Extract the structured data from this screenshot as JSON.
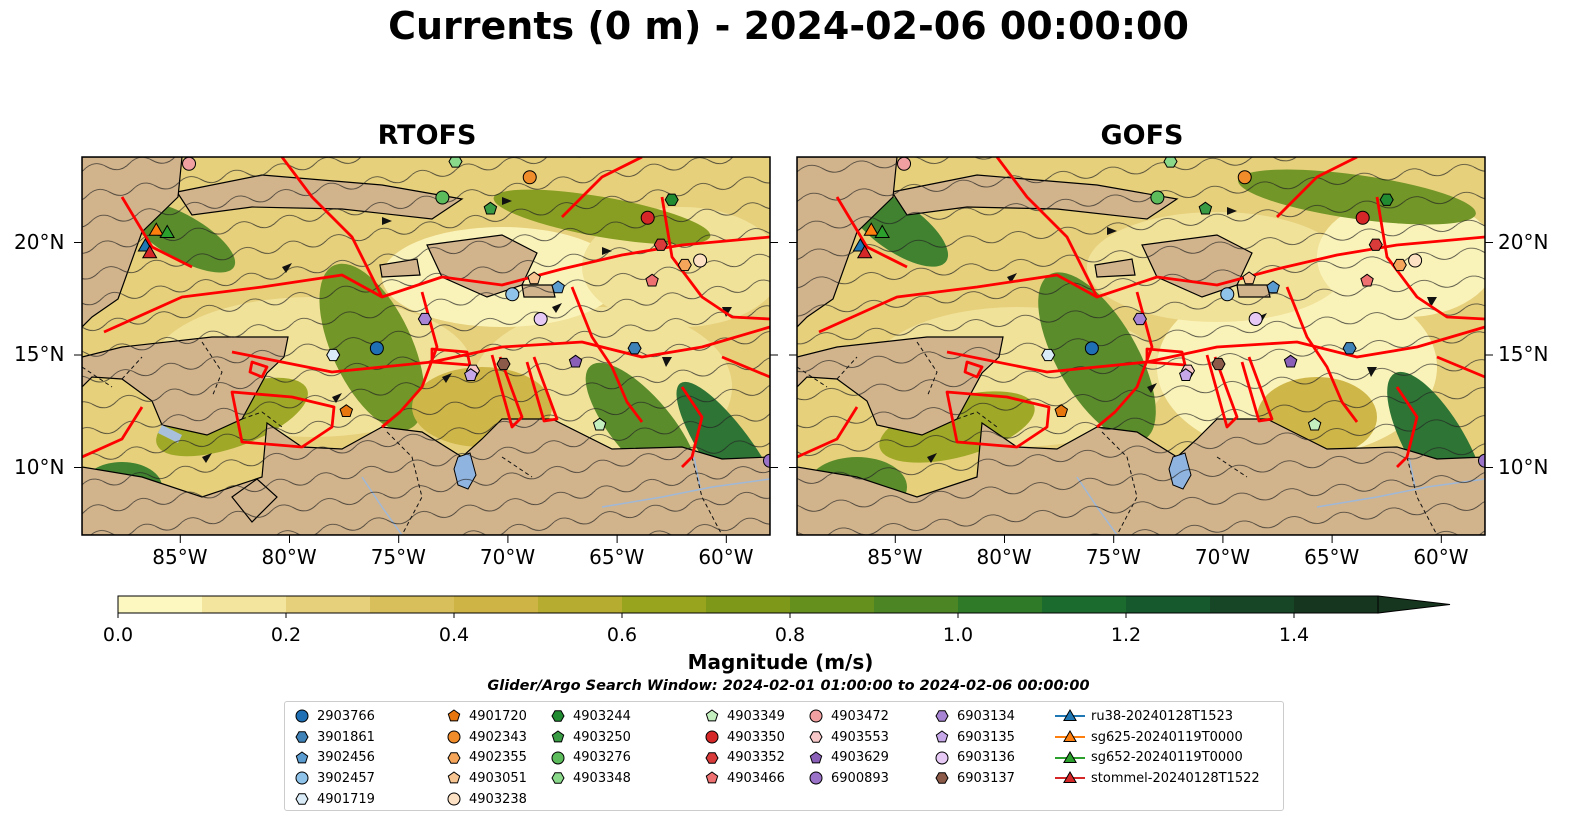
{
  "title": "Currents (0 m) - 2024-02-06 00:00:00",
  "panels": [
    {
      "title": "RTOFS"
    },
    {
      "title": "GOFS"
    }
  ],
  "axes": {
    "lon_labels": [
      "85°W",
      "80°W",
      "75°W",
      "70°W",
      "65°W",
      "60°W"
    ],
    "lat_labels": [
      "20°N",
      "15°N",
      "10°N"
    ],
    "lon_range": [
      -89.5,
      -58.0
    ],
    "lat_range": [
      7.0,
      23.8
    ]
  },
  "colorbar": {
    "label": "Magnitude (m/s)",
    "ticks": [
      "0.0",
      "0.2",
      "0.4",
      "0.6",
      "0.8",
      "1.0",
      "1.2",
      "1.4"
    ],
    "range": [
      0.0,
      1.5
    ],
    "step": 0.1,
    "extend": "max",
    "colors": [
      "#fdf7c0",
      "#f3e49e",
      "#e6d07c",
      "#d9bf5c",
      "#cdb444",
      "#b6ad30",
      "#98a41e",
      "#7e991a",
      "#66901e",
      "#4c8524",
      "#2f7a28",
      "#1b6b2e",
      "#15592c",
      "#164626",
      "#17361f"
    ]
  },
  "search_window": "Glider/Argo Search Window: 2024-02-01 01:00:00 to 2024-02-06 00:00:00",
  "legend": {
    "columns": [
      [
        {
          "label": "2903766",
          "marker": "circle",
          "color": "#1f6fb4"
        },
        {
          "label": "3901861",
          "marker": "hexagon",
          "color": "#3f82b8"
        },
        {
          "label": "3902456",
          "marker": "pentagon",
          "color": "#5a9bd0"
        },
        {
          "label": "3902457",
          "marker": "circle",
          "color": "#8fc3ea"
        },
        {
          "label": "4901719",
          "marker": "hexagon",
          "color": "#d9ecf8"
        }
      ],
      [
        {
          "label": "4901720",
          "marker": "pentagon",
          "color": "#e8760e"
        },
        {
          "label": "4902343",
          "marker": "circle",
          "color": "#f08c2a"
        },
        {
          "label": "4902355",
          "marker": "hexagon",
          "color": "#f5a65a"
        },
        {
          "label": "4903051",
          "marker": "pentagon",
          "color": "#f7c591"
        },
        {
          "label": "4903238",
          "marker": "circle",
          "color": "#fde1c4"
        }
      ],
      [
        {
          "label": "4903244",
          "marker": "hexagon",
          "color": "#218b32"
        },
        {
          "label": "4903250",
          "marker": "pentagon",
          "color": "#3a9b45"
        },
        {
          "label": "4903276",
          "marker": "circle",
          "color": "#5cbc5c"
        },
        {
          "label": "4903348",
          "marker": "hexagon",
          "color": "#8ad98a"
        }
      ],
      [
        {
          "label": "4903349",
          "marker": "pentagon",
          "color": "#c4f0c0"
        },
        {
          "label": "4903350",
          "marker": "circle",
          "color": "#d62728"
        },
        {
          "label": "4903352",
          "marker": "hexagon",
          "color": "#d93a3a"
        },
        {
          "label": "4903466",
          "marker": "pentagon",
          "color": "#ee7070"
        }
      ],
      [
        {
          "label": "4903472",
          "marker": "circle",
          "color": "#f0a0a0"
        },
        {
          "label": "4903553",
          "marker": "hexagon",
          "color": "#f8c8c8"
        },
        {
          "label": "4903629",
          "marker": "pentagon",
          "color": "#8a5fb8"
        },
        {
          "label": "6900893",
          "marker": "circle",
          "color": "#9a72c8"
        }
      ],
      [
        {
          "label": "6903134",
          "marker": "hexagon",
          "color": "#a884d4"
        },
        {
          "label": "6903135",
          "marker": "pentagon",
          "color": "#c6a8e8"
        },
        {
          "label": "6903136",
          "marker": "circle",
          "color": "#e6c9f4"
        },
        {
          "label": "6903137",
          "marker": "hexagon",
          "color": "#8c5a48"
        }
      ],
      [
        {
          "label": "ru38-20240128T1523",
          "marker": "triangle-line",
          "color": "#1f77b4"
        },
        {
          "label": "sg625-20240119T0000",
          "marker": "triangle-line",
          "color": "#ff7f0e"
        },
        {
          "label": "sg652-20240119T0000",
          "marker": "triangle-line",
          "color": "#2ca02c"
        },
        {
          "label": "stommel-20240128T1522",
          "marker": "triangle-line",
          "color": "#d62728"
        }
      ]
    ]
  },
  "floats": [
    {
      "id": "2903766",
      "lon": -76.0,
      "lat": 15.3
    },
    {
      "id": "3901861",
      "lon": -64.2,
      "lat": 15.3
    },
    {
      "id": "3902456",
      "lon": -67.7,
      "lat": 18.0
    },
    {
      "id": "3902457",
      "lon": -69.8,
      "lat": 17.7
    },
    {
      "id": "4901719",
      "lon": -78.0,
      "lat": 15.0
    },
    {
      "id": "4901720",
      "lon": -77.4,
      "lat": 12.5
    },
    {
      "id": "4902343",
      "lon": -69.0,
      "lat": 22.9
    },
    {
      "id": "4902355",
      "lon": -61.9,
      "lat": 19.0
    },
    {
      "id": "4903051",
      "lon": -68.8,
      "lat": 18.4
    },
    {
      "id": "4903238",
      "lon": -61.2,
      "lat": 19.2
    },
    {
      "id": "4903244",
      "lon": -62.5,
      "lat": 21.9
    },
    {
      "id": "4903250",
      "lon": -70.8,
      "lat": 21.5
    },
    {
      "id": "4903276",
      "lon": -73.0,
      "lat": 22.0
    },
    {
      "id": "4903348",
      "lon": -72.4,
      "lat": 23.6
    },
    {
      "id": "4903349",
      "lon": -65.8,
      "lat": 11.9
    },
    {
      "id": "4903350",
      "lon": -63.6,
      "lat": 21.1
    },
    {
      "id": "4903352",
      "lon": -63.0,
      "lat": 19.9
    },
    {
      "id": "4903466",
      "lon": -63.4,
      "lat": 18.3
    },
    {
      "id": "4903472",
      "lon": -84.6,
      "lat": 23.5
    },
    {
      "id": "4903553",
      "lon": -71.6,
      "lat": 14.3
    },
    {
      "id": "4903629",
      "lon": -66.9,
      "lat": 14.7
    },
    {
      "id": "6900893",
      "lon": -58.0,
      "lat": 10.3
    },
    {
      "id": "6903134",
      "lon": -73.8,
      "lat": 16.6
    },
    {
      "id": "6903135",
      "lon": -71.7,
      "lat": 14.1
    },
    {
      "id": "6903136",
      "lon": -68.5,
      "lat": 16.6
    },
    {
      "id": "6903137",
      "lon": -70.2,
      "lat": 14.6
    }
  ],
  "gliders": [
    {
      "id": "ru38-20240128T1523",
      "lon": -86.6,
      "lat": 19.8
    },
    {
      "id": "sg625-20240119T0000",
      "lon": -86.1,
      "lat": 20.5
    },
    {
      "id": "sg652-20240119T0000",
      "lon": -85.6,
      "lat": 20.4
    },
    {
      "id": "stommel-20240128T1522",
      "lon": -86.4,
      "lat": 19.5
    }
  ]
}
